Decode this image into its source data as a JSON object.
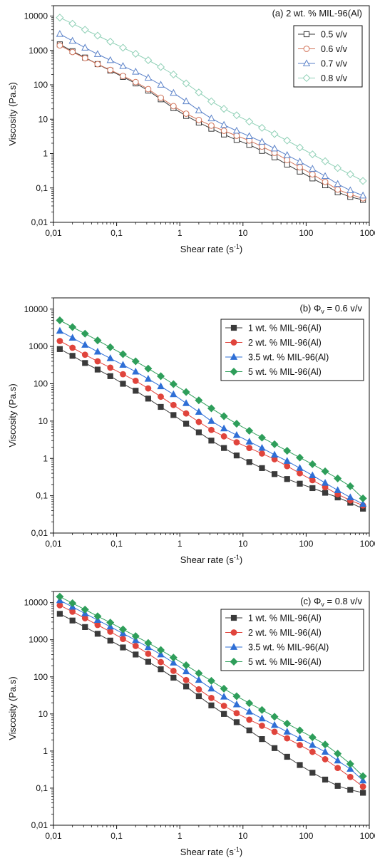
{
  "chart_data": [
    {
      "type": "line",
      "title_prefix": "(a) 2 wt. % MIL-96(Al)",
      "title_sub": "",
      "title_suffix": "",
      "xlabel": "Shear rate (s",
      "xlabel_sup": "-1",
      "xlabel_end": ")",
      "ylabel": "Viscosity (Pa.s)",
      "xscale": "log",
      "yscale": "log",
      "xlim": [
        0.01,
        1000
      ],
      "ylim": [
        0.01,
        20000
      ],
      "xticks": [
        "0,01",
        "0,1",
        "1",
        "10",
        "100",
        "1000"
      ],
      "yticks": [
        "0,01",
        "0,1",
        "1",
        "10",
        "100",
        "1000",
        "10000"
      ],
      "legend_position": "top-right",
      "grid": false,
      "x": [
        0.0126,
        0.02,
        0.0316,
        0.05,
        0.0794,
        0.126,
        0.2,
        0.316,
        0.5,
        0.794,
        1.26,
        2,
        3.16,
        5,
        7.94,
        12.6,
        20,
        31.6,
        50,
        79.4,
        126,
        200,
        316,
        500,
        794
      ],
      "series": [
        {
          "name": "0.5 v/v",
          "marker": "square",
          "filled": false,
          "color": "#3a3a3a",
          "values": [
            1500,
            950,
            620,
            400,
            260,
            170,
            110,
            68,
            38,
            21,
            12.5,
            8,
            5.3,
            3.6,
            2.5,
            1.8,
            1.2,
            0.78,
            0.48,
            0.3,
            0.19,
            0.12,
            0.075,
            0.055,
            0.045
          ]
        },
        {
          "name": "0.6 v/v",
          "marker": "circle",
          "filled": false,
          "color": "#d2745a",
          "values": [
            1400,
            900,
            600,
            400,
            270,
            180,
            120,
            75,
            42,
            24,
            14.5,
            9.5,
            6.5,
            4.6,
            3.3,
            2.4,
            1.6,
            1.05,
            0.65,
            0.4,
            0.25,
            0.15,
            0.09,
            0.065,
            0.05
          ]
        },
        {
          "name": "0.7 v/v",
          "marker": "triangle",
          "filled": false,
          "color": "#5b82c9",
          "values": [
            3000,
            1900,
            1200,
            780,
            520,
            350,
            240,
            160,
            100,
            58,
            33,
            18,
            10.5,
            6.8,
            4.6,
            3.2,
            2.2,
            1.4,
            0.9,
            0.58,
            0.36,
            0.22,
            0.13,
            0.085,
            0.06
          ]
        },
        {
          "name": "0.8 v/v",
          "marker": "diamond",
          "filled": false,
          "color": "#8fd0b6",
          "values": [
            9000,
            6000,
            4000,
            2700,
            1800,
            1200,
            800,
            520,
            330,
            200,
            110,
            60,
            33,
            20,
            13,
            8.5,
            5.6,
            3.7,
            2.4,
            1.5,
            0.95,
            0.6,
            0.38,
            0.25,
            0.16
          ]
        }
      ]
    },
    {
      "type": "line",
      "title_prefix": "(b) Φ",
      "title_sub": "v",
      "title_suffix": " = 0.6 v/v",
      "xlabel": "Shear rate (s",
      "xlabel_sup": "-1",
      "xlabel_end": ")",
      "ylabel": "Viscosity (Pa.s)",
      "xscale": "log",
      "yscale": "log",
      "xlim": [
        0.01,
        1000
      ],
      "ylim": [
        0.01,
        20000
      ],
      "xticks": [
        "0,01",
        "0,1",
        "1",
        "10",
        "100",
        "1000"
      ],
      "yticks": [
        "0,01",
        "0,1",
        "1",
        "10",
        "100",
        "1000",
        "10000"
      ],
      "legend_position": "top-right",
      "grid": false,
      "x": [
        0.0126,
        0.02,
        0.0316,
        0.05,
        0.0794,
        0.126,
        0.2,
        0.316,
        0.5,
        0.794,
        1.26,
        2,
        3.16,
        5,
        7.94,
        12.6,
        20,
        31.6,
        50,
        79.4,
        126,
        200,
        316,
        500,
        794
      ],
      "series": [
        {
          "name": "1 wt. % MIL-96(Al)",
          "marker": "square",
          "filled": true,
          "color": "#3a3a3a",
          "values": [
            850,
            560,
            360,
            240,
            160,
            100,
            65,
            40,
            24,
            14.5,
            8.5,
            5,
            3,
            1.9,
            1.2,
            0.8,
            0.55,
            0.38,
            0.28,
            0.21,
            0.16,
            0.12,
            0.09,
            0.065,
            0.045
          ]
        },
        {
          "name": "2 wt. % MIL-96(Al)",
          "marker": "circle",
          "filled": true,
          "color": "#e0443c",
          "values": [
            1400,
            920,
            600,
            400,
            270,
            180,
            120,
            75,
            45,
            27,
            16,
            9.5,
            5.8,
            3.9,
            2.7,
            1.9,
            1.35,
            0.95,
            0.62,
            0.4,
            0.26,
            0.17,
            0.11,
            0.075,
            0.055
          ]
        },
        {
          "name": "3.5 wt. % MIL-96(Al)",
          "marker": "triangle",
          "filled": true,
          "color": "#2f6fd6",
          "values": [
            2600,
            1700,
            1100,
            720,
            480,
            320,
            210,
            135,
            85,
            52,
            30,
            17.5,
            10,
            6.3,
            4.2,
            2.8,
            1.9,
            1.25,
            0.85,
            0.55,
            0.35,
            0.22,
            0.14,
            0.09,
            0.06
          ]
        },
        {
          "name": "5 wt. % MIL-96(Al)",
          "marker": "diamond",
          "filled": true,
          "color": "#2e9e5a",
          "values": [
            5000,
            3300,
            2200,
            1450,
            950,
            620,
            400,
            255,
            160,
            98,
            60,
            36,
            22,
            13.5,
            8.5,
            5.5,
            3.6,
            2.4,
            1.6,
            1.05,
            0.7,
            0.45,
            0.29,
            0.18,
            0.085
          ]
        }
      ]
    },
    {
      "type": "line",
      "title_prefix": "(c) Φ",
      "title_sub": "v",
      "title_suffix": " = 0.8 v/v",
      "xlabel": "Shear rate (s",
      "xlabel_sup": "-1",
      "xlabel_end": ")",
      "ylabel": "Viscosity (Pa.s)",
      "xscale": "log",
      "yscale": "log",
      "xlim": [
        0.01,
        1000
      ],
      "ylim": [
        0.01,
        20000
      ],
      "xticks": [
        "0,01",
        "0,1",
        "1",
        "10",
        "100",
        "1000"
      ],
      "yticks": [
        "0,01",
        "0,1",
        "1",
        "10",
        "100",
        "1000",
        "10000"
      ],
      "legend_position": "top-right",
      "grid": false,
      "x": [
        0.0126,
        0.02,
        0.0316,
        0.05,
        0.0794,
        0.126,
        0.2,
        0.316,
        0.5,
        0.794,
        1.26,
        2,
        3.16,
        5,
        7.94,
        12.6,
        20,
        31.6,
        50,
        79.4,
        126,
        200,
        316,
        500,
        794
      ],
      "series": [
        {
          "name": "1 wt. % MIL-96(Al)",
          "marker": "square",
          "filled": true,
          "color": "#3a3a3a",
          "values": [
            5000,
            3300,
            2200,
            1450,
            950,
            620,
            400,
            255,
            160,
            95,
            55,
            30,
            17,
            10,
            6,
            3.6,
            2.1,
            1.2,
            0.7,
            0.42,
            0.26,
            0.17,
            0.115,
            0.09,
            0.075
          ]
        },
        {
          "name": "2 wt. % MIL-96(Al)",
          "marker": "circle",
          "filled": true,
          "color": "#e0443c",
          "values": [
            8500,
            5700,
            3800,
            2500,
            1650,
            1050,
            680,
            420,
            250,
            145,
            82,
            46,
            27,
            16.5,
            10.5,
            7,
            4.8,
            3.3,
            2.2,
            1.45,
            0.95,
            0.6,
            0.35,
            0.2,
            0.11
          ]
        },
        {
          "name": "3.5 wt. % MIL-96(Al)",
          "marker": "triangle",
          "filled": true,
          "color": "#2f6fd6",
          "values": [
            11500,
            7700,
            5100,
            3400,
            2250,
            1480,
            970,
            630,
            400,
            240,
            140,
            82,
            48,
            29,
            18,
            11.5,
            7.5,
            5,
            3.3,
            2.2,
            1.45,
            0.95,
            0.55,
            0.33,
            0.16
          ]
        },
        {
          "name": "5 wt. % MIL-96(Al)",
          "marker": "diamond",
          "filled": true,
          "color": "#2e9e5a",
          "values": [
            14500,
            9700,
            6500,
            4300,
            2900,
            1900,
            1250,
            820,
            530,
            330,
            205,
            125,
            78,
            48,
            30,
            19.5,
            12.8,
            8.4,
            5.5,
            3.6,
            2.35,
            1.5,
            0.85,
            0.45,
            0.21
          ]
        }
      ]
    }
  ]
}
